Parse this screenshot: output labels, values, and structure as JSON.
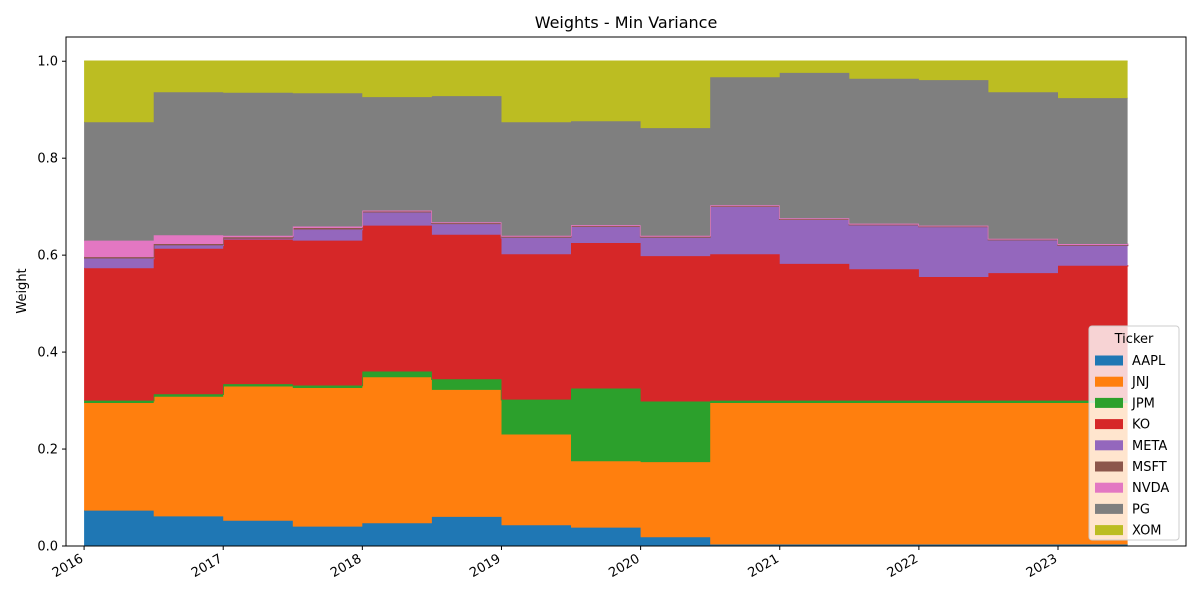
{
  "chart_data": {
    "type": "area",
    "step": "post",
    "title": "Weights - Min Variance",
    "xlabel": "",
    "ylabel": "Weight",
    "xlim": [
      2015.87,
      2023.92
    ],
    "ylim": [
      0,
      1.05
    ],
    "x_ticks": [
      "2016",
      "2017",
      "2018",
      "2019",
      "2020",
      "2021",
      "2022",
      "2023"
    ],
    "y_ticks": [
      "0.0",
      "0.2",
      "0.4",
      "0.6",
      "0.8",
      "1.0"
    ],
    "grid": false,
    "legend_title": "Ticker",
    "legend_position": "lower-right",
    "x": [
      "2016-01",
      "2016-07",
      "2017-01",
      "2017-07",
      "2018-01",
      "2018-07",
      "2019-01",
      "2019-07",
      "2020-01",
      "2020-07",
      "2021-01",
      "2021-07",
      "2022-01",
      "2022-07",
      "2023-01",
      "2023-07"
    ],
    "series": [
      {
        "name": "AAPL",
        "color": "#1f77b4",
        "values": [
          0.073,
          0.061,
          0.052,
          0.04,
          0.047,
          0.06,
          0.043,
          0.038,
          0.018,
          0.003,
          0.003,
          0.003,
          0.003,
          0.003,
          0.003,
          0.003
        ]
      },
      {
        "name": "JNJ",
        "color": "#ff7f0e",
        "values": [
          0.222,
          0.247,
          0.277,
          0.286,
          0.301,
          0.262,
          0.187,
          0.137,
          0.155,
          0.292,
          0.292,
          0.292,
          0.292,
          0.292,
          0.292,
          0.292
        ]
      },
      {
        "name": "JPM",
        "color": "#2ca02c",
        "values": [
          0.005,
          0.005,
          0.005,
          0.005,
          0.012,
          0.022,
          0.072,
          0.15,
          0.125,
          0.005,
          0.005,
          0.005,
          0.005,
          0.005,
          0.005,
          0.005
        ]
      },
      {
        "name": "KO",
        "color": "#d62728",
        "values": [
          0.273,
          0.3,
          0.298,
          0.299,
          0.301,
          0.298,
          0.3,
          0.3,
          0.3,
          0.302,
          0.282,
          0.271,
          0.255,
          0.263,
          0.278,
          0.279
        ]
      },
      {
        "name": "META",
        "color": "#9467bd",
        "values": [
          0.02,
          0.007,
          0.002,
          0.023,
          0.027,
          0.022,
          0.034,
          0.033,
          0.038,
          0.098,
          0.091,
          0.091,
          0.103,
          0.068,
          0.042,
          0.042
        ]
      },
      {
        "name": "MSFT",
        "color": "#8c564b",
        "values": [
          0.003,
          0.003,
          0.003,
          0.003,
          0.002,
          0.002,
          0.002,
          0.002,
          0.002,
          0.001,
          0.001,
          0.001,
          0.001,
          0.001,
          0.001,
          0.001
        ]
      },
      {
        "name": "NVDA",
        "color": "#e377c2",
        "values": [
          0.034,
          0.018,
          0.003,
          0.003,
          0.002,
          0.002,
          0.002,
          0.002,
          0.002,
          0.002,
          0.002,
          0.002,
          0.002,
          0.002,
          0.002,
          0.002
        ]
      },
      {
        "name": "PG",
        "color": "#7f7f7f",
        "values": [
          0.244,
          0.295,
          0.295,
          0.275,
          0.234,
          0.26,
          0.234,
          0.214,
          0.222,
          0.264,
          0.3,
          0.299,
          0.3,
          0.302,
          0.301,
          0.3
        ]
      },
      {
        "name": "XOM",
        "color": "#bcbd22",
        "values": [
          0.126,
          0.064,
          0.065,
          0.066,
          0.074,
          0.072,
          0.126,
          0.124,
          0.138,
          0.033,
          0.024,
          0.036,
          0.039,
          0.064,
          0.076,
          0.076
        ]
      }
    ]
  }
}
